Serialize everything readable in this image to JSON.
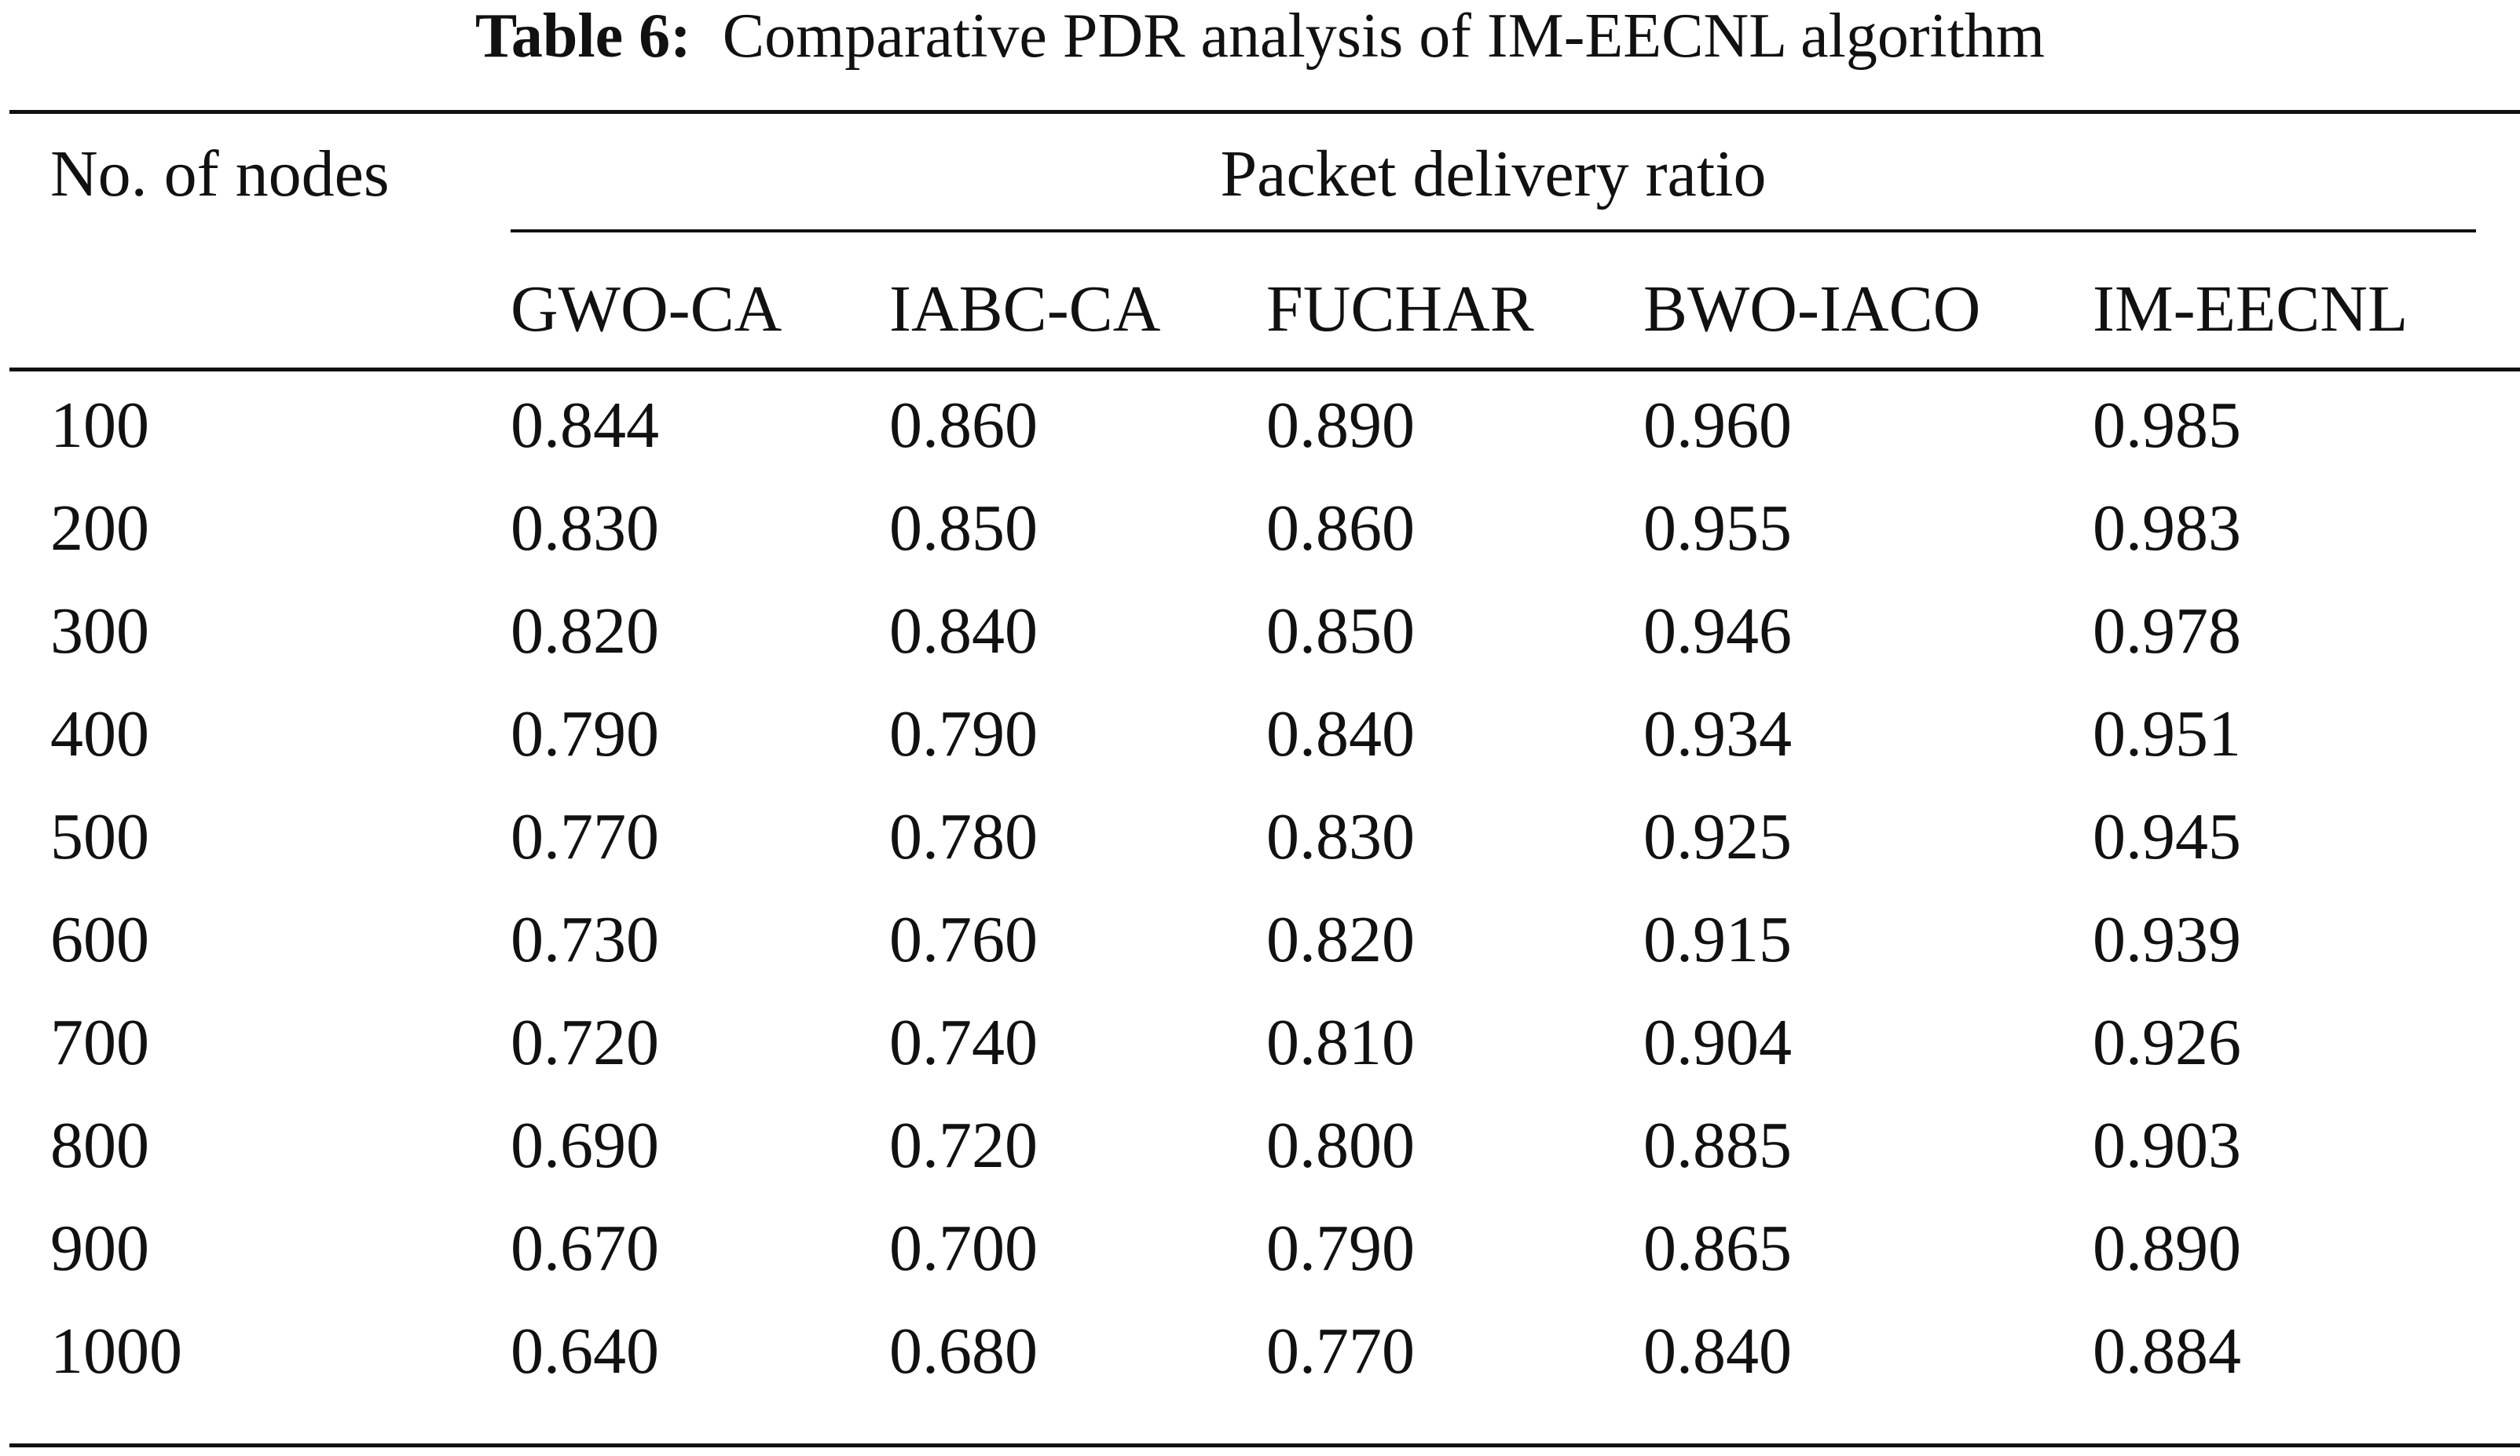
{
  "caption": {
    "label": "Table 6:",
    "text": "Comparative PDR analysis of IM-EECNL algorithm"
  },
  "header": {
    "row_label": "No. of nodes",
    "group_label": "Packet delivery ratio",
    "columns": [
      "GWO-CA",
      "IABC-CA",
      "FUCHAR",
      "BWO-IACO",
      "IM-EECNL"
    ]
  },
  "rows": [
    [
      "100",
      "0.844",
      "0.860",
      "0.890",
      "0.960",
      "0.985"
    ],
    [
      "200",
      "0.830",
      "0.850",
      "0.860",
      "0.955",
      "0.983"
    ],
    [
      "300",
      "0.820",
      "0.840",
      "0.850",
      "0.946",
      "0.978"
    ],
    [
      "400",
      "0.790",
      "0.790",
      "0.840",
      "0.934",
      "0.951"
    ],
    [
      "500",
      "0.770",
      "0.780",
      "0.830",
      "0.925",
      "0.945"
    ],
    [
      "600",
      "0.730",
      "0.760",
      "0.820",
      "0.915",
      "0.939"
    ],
    [
      "700",
      "0.720",
      "0.740",
      "0.810",
      "0.904",
      "0.926"
    ],
    [
      "800",
      "0.690",
      "0.720",
      "0.800",
      "0.885",
      "0.903"
    ],
    [
      "900",
      "0.670",
      "0.700",
      "0.790",
      "0.865",
      "0.890"
    ],
    [
      "1000",
      "0.640",
      "0.680",
      "0.770",
      "0.840",
      "0.884"
    ]
  ]
}
